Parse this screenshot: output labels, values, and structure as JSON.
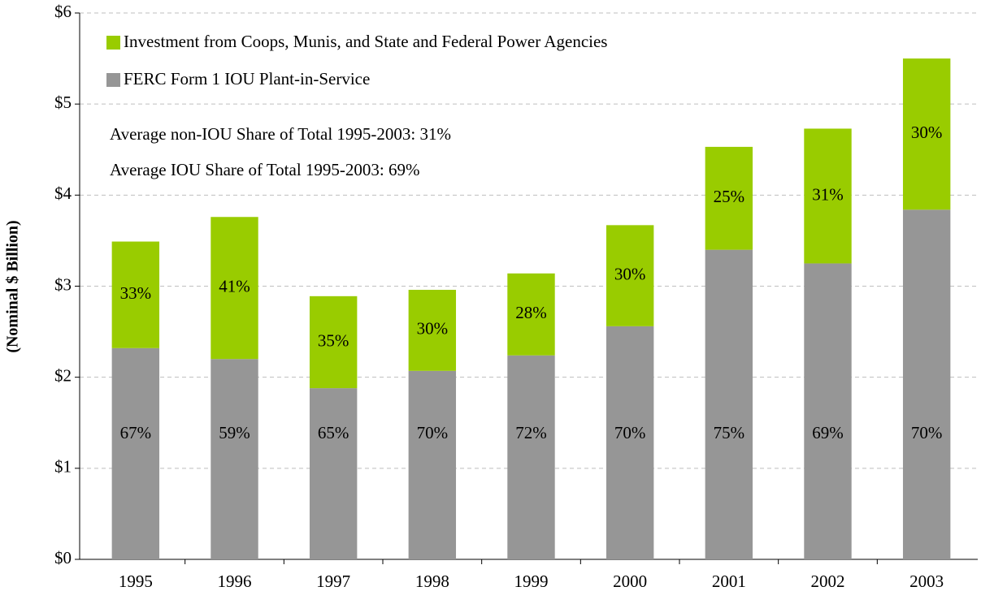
{
  "chart_data": {
    "type": "stacked_bar",
    "y_label": "(Nominal $ Billion)",
    "categories": [
      "1995",
      "1996",
      "1997",
      "1998",
      "1999",
      "2000",
      "2001",
      "2002",
      "2003"
    ],
    "series": [
      {
        "name": "FERC Form 1 IOU Plant-in-Service",
        "color": "#969696",
        "values": [
          2.32,
          2.2,
          1.88,
          2.07,
          2.24,
          2.56,
          3.4,
          3.25,
          3.84
        ],
        "share_labels": [
          "67%",
          "59%",
          "65%",
          "70%",
          "72%",
          "70%",
          "75%",
          "69%",
          "70%"
        ]
      },
      {
        "name": "Investment from Coops, Munis, and State and Federal Power Agencies",
        "color": "#99cc00",
        "values": [
          1.17,
          1.56,
          1.01,
          0.89,
          0.9,
          1.11,
          1.13,
          1.48,
          1.66
        ],
        "share_labels": [
          "33%",
          "41%",
          "35%",
          "30%",
          "28%",
          "30%",
          "25%",
          "31%",
          "30%"
        ]
      }
    ],
    "annotations": [
      "Average non-IOU Share of Total 1995-2003: 31%",
      "Average IOU Share of Total 1995-2003: 69%"
    ],
    "ylim": [
      0,
      6
    ],
    "yticks": [
      {
        "value": 0,
        "label": "$0"
      },
      {
        "value": 1,
        "label": "$1"
      },
      {
        "value": 2,
        "label": "$2"
      },
      {
        "value": 3,
        "label": "$3"
      },
      {
        "value": 4,
        "label": "$4"
      },
      {
        "value": 5,
        "label": "$5"
      },
      {
        "value": 6,
        "label": "$6"
      }
    ],
    "grid": true,
    "legend": "upper left"
  }
}
